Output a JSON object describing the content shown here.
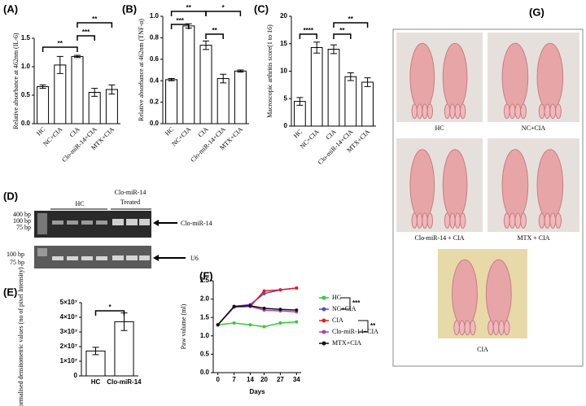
{
  "chart_data": [
    {
      "type": "bar",
      "panel_label": "(A)",
      "ylabel": "Relative absorbance at 462nm (IL-6)",
      "categories": [
        "HC",
        "NC+CIA",
        "CIA",
        "Clo-miR-14+CIA",
        "MTX+CIA"
      ],
      "values": [
        0.65,
        1.03,
        1.18,
        0.55,
        0.6
      ],
      "errors": [
        0.03,
        0.15,
        0.02,
        0.07,
        0.08
      ],
      "color": "#ffffff",
      "ylim": [
        0,
        1.5
      ],
      "yticks": [
        {
          "value": 0,
          "label": "0.0"
        },
        0.5,
        {
          "value": 1,
          "label": "1.0"
        },
        1.5
      ],
      "significance": [
        "**",
        "***",
        "**"
      ]
    },
    {
      "type": "bar",
      "panel_label": "(B)",
      "ylabel": "Relative absorbance at 462nm (TNF-α)",
      "categories": [
        "HC",
        "NC+CIA",
        "CIA",
        "Clo-miR-14+CIA",
        "MTX+CIA"
      ],
      "values": [
        0.41,
        0.91,
        0.73,
        0.42,
        0.49
      ],
      "errors": [
        0.01,
        0.02,
        0.04,
        0.04,
        0.01
      ],
      "color": "#ffffff",
      "ylim": [
        0,
        1
      ],
      "yticks": [
        {
          "value": 0,
          "label": "0.0"
        },
        0.2,
        0.4,
        0.6,
        0.8,
        {
          "value": 1,
          "label": "1.0"
        }
      ],
      "significance": [
        "**",
        "*",
        "***",
        "**"
      ]
    },
    {
      "type": "bar",
      "panel_label": "(C)",
      "ylabel": "Macroscopic arthritis score(1 to 16)",
      "categories": [
        "HC",
        "NC+CIA",
        "CIA",
        "Clo-miR-14+CIA",
        "MTX+CIA"
      ],
      "values": [
        4.5,
        14.3,
        14,
        9,
        8
      ],
      "errors": [
        0.7,
        1,
        0.8,
        0.7,
        0.8
      ],
      "color": "#ffffff",
      "ylim": [
        0,
        20
      ],
      "yticks": [
        0,
        5,
        10,
        15,
        20
      ],
      "significance": [
        "****",
        "**",
        "**"
      ]
    },
    {
      "type": "bar",
      "panel_label": "(E)",
      "ylabel": "Normalised densitometric values (no of pixel Intensity)",
      "categories": [
        "HC",
        "Clo-miR-14"
      ],
      "values": [
        17000000,
        37000000
      ],
      "errors": [
        2500000,
        6000000
      ],
      "color": "#ffffff",
      "ylim": [
        0,
        50000000
      ],
      "yticks": [
        0,
        {
          "value": 10000000,
          "label": "1×10⁷"
        },
        {
          "value": 20000000,
          "label": "2×10⁷"
        },
        {
          "value": 30000000,
          "label": "3×10⁷"
        },
        {
          "value": 40000000,
          "label": "4×10⁷"
        },
        {
          "value": 50000000,
          "label": "5×10⁷"
        }
      ],
      "significance": [
        "*"
      ]
    },
    {
      "type": "line",
      "panel_label": "(F)",
      "xlabel": "Days",
      "ylabel": "Paw volume (ml)",
      "x": [
        0,
        7,
        14,
        20,
        27,
        34
      ],
      "xlim": [
        -2,
        36
      ],
      "xticks": [
        0,
        7,
        14,
        20,
        27,
        34
      ],
      "ylim": [
        0,
        2.5
      ],
      "yticks": [
        {
          "value": 0,
          "label": "0.0"
        },
        0.5,
        {
          "value": 1,
          "label": "1.0"
        },
        1.5,
        {
          "value": 2,
          "label": "2.0"
        },
        2.5
      ],
      "series": [
        {
          "name": "HC",
          "color": "#33cc33",
          "values": [
            1.3,
            1.35,
            1.3,
            1.25,
            1.35,
            1.38
          ]
        },
        {
          "name": "NC+CIA",
          "color": "#5544dd",
          "values": [
            1.3,
            1.8,
            1.85,
            2.15,
            2.25,
            2.3
          ]
        },
        {
          "name": "CIA",
          "color": "#dd2222",
          "values": [
            1.3,
            1.78,
            1.8,
            2.22,
            2.25,
            2.3
          ]
        },
        {
          "name": "Clo-miR-14+CIA",
          "color": "#b040b0",
          "values": [
            1.3,
            1.78,
            1.8,
            1.7,
            1.68,
            1.65
          ]
        },
        {
          "name": "MTX+CIA",
          "color": "#111111",
          "values": [
            1.3,
            1.8,
            1.82,
            1.75,
            1.72,
            1.7
          ]
        }
      ],
      "significance": [
        "***",
        "**"
      ]
    }
  ],
  "gel": {
    "panel_label": "(D)",
    "group_labels": [
      "HC",
      "Clo-miR-14",
      "Treated"
    ],
    "markers_top": [
      "400 bp",
      "100 bp",
      "75 bp"
    ],
    "target_label": "Clo-miR-14",
    "markers_bottom": [
      "100 bp",
      "75 bp"
    ],
    "control_label": "U6"
  },
  "photos": {
    "panel_label": "(G)",
    "labels": [
      "HC",
      "NC+CIA",
      "Clo-miR-14 + CIA",
      "MTX + CIA",
      "CIA"
    ]
  }
}
